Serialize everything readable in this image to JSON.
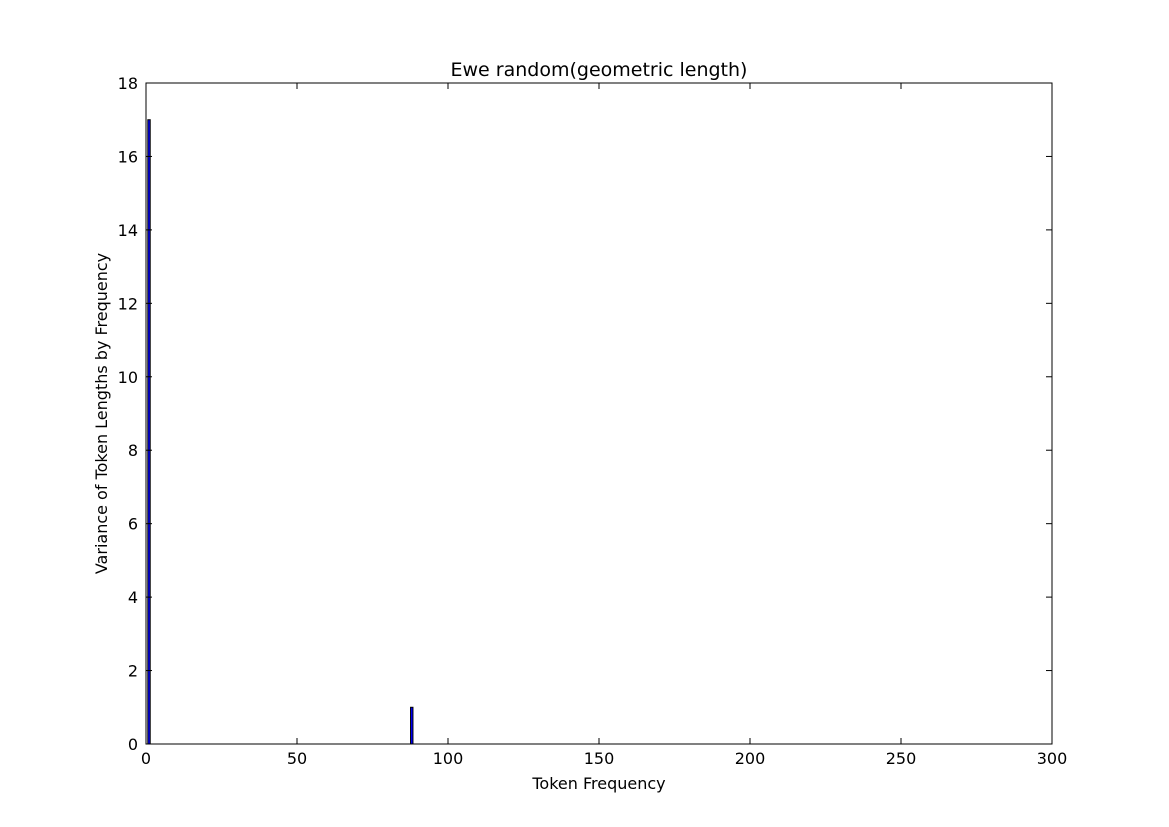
{
  "chart_data": {
    "type": "bar",
    "title": "Ewe random(geometric length)",
    "xlabel": "Token Frequency",
    "ylabel": "Variance of Token Lengths by Frequency",
    "xlim": [
      0,
      300
    ],
    "ylim": [
      0,
      18
    ],
    "xticks": [
      "0",
      "50",
      "100",
      "150",
      "200",
      "250",
      "300"
    ],
    "yticks": [
      "0",
      "2",
      "4",
      "6",
      "8",
      "10",
      "12",
      "14",
      "16",
      "18"
    ],
    "grid": false,
    "legend": "none",
    "bar_color": "#0000ff",
    "edge_color": "#000000",
    "bar_width": 0.8,
    "x": [
      1,
      2,
      3,
      4,
      5,
      6,
      7,
      8,
      9,
      10,
      12,
      15,
      18,
      20,
      25,
      30,
      35,
      40,
      45,
      50,
      55,
      60,
      65,
      70,
      75,
      80,
      85,
      88,
      90,
      95,
      100,
      105,
      110,
      120,
      130,
      140,
      150,
      160,
      170,
      180,
      190,
      200,
      210,
      220,
      230,
      240,
      250,
      260,
      270,
      280,
      290
    ],
    "values": [
      17,
      0,
      0,
      0,
      0,
      0,
      0,
      0,
      0,
      0,
      0,
      0,
      0,
      0,
      0,
      0,
      0,
      0,
      0,
      0,
      0,
      0,
      0,
      0,
      0,
      0,
      0,
      1,
      0,
      0,
      0,
      0,
      0,
      0,
      0,
      0,
      0,
      0,
      0,
      0,
      0,
      0,
      0,
      0,
      0,
      0,
      0,
      0,
      0,
      0,
      0
    ]
  }
}
